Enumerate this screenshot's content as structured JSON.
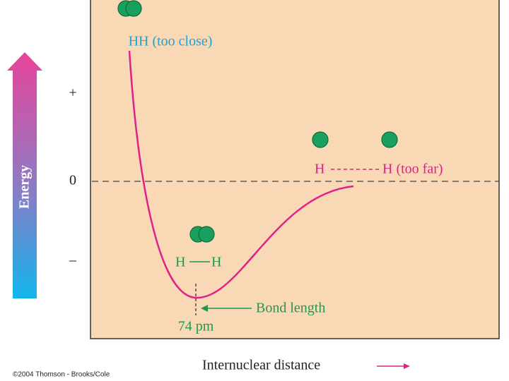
{
  "axis": {
    "y_label": "Energy",
    "x_label": "Internuclear distance",
    "y_ticks": [
      "+",
      "0",
      "–"
    ]
  },
  "annotations": {
    "too_close": "HH (too close)",
    "bonded_left": "H",
    "bonded_right": "H",
    "far_left": "H",
    "far_right": "H (too far)",
    "bond_length": "Bond length",
    "distance": "74 pm"
  },
  "copyright": "©2004 Thomson - Brooks/Cole"
}
